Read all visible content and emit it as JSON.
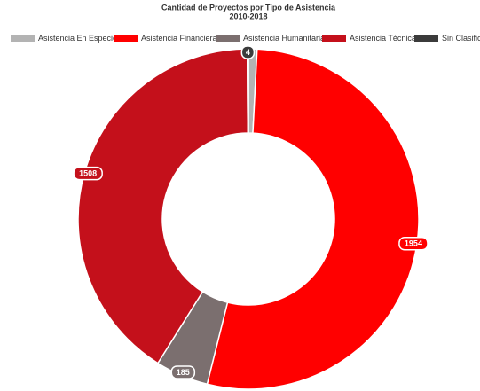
{
  "chart_data": {
    "type": "donut",
    "title": "Cantidad de Proyectos por Tipo de Asistencia",
    "subtitle": "2010-2018",
    "categories": [
      "Asistencia En Especie",
      "Asistencia Financiera",
      "Asistencia Humanitaria",
      "Asistencia Técnica",
      "Sin Clasifica"
    ],
    "values": [
      30,
      1954,
      185,
      1508,
      4
    ],
    "colors": [
      "#b3b3b3",
      "#ff0000",
      "#7b6f6f",
      "#c4101b",
      "#3b3b3b"
    ],
    "legend": "top"
  }
}
